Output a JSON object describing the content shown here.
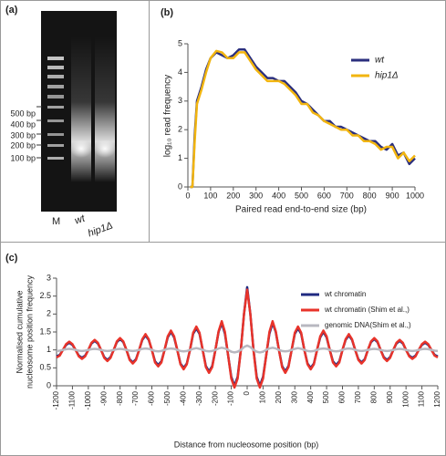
{
  "gel": {
    "panel_label": "(a)",
    "size_markers": [
      "500 bp",
      "400 bp",
      "300 bp",
      "200 bp",
      "100 bp"
    ],
    "lanes": [
      "M",
      "wt",
      "hip1Δ"
    ]
  },
  "chart_data": [
    {
      "type": "line",
      "panel_label": "(b)",
      "xlabel": "Paired read end-to-end size (bp)",
      "ylabel": "log₁₀ read frequency",
      "x": [
        10,
        20,
        30,
        40,
        60,
        80,
        100,
        125,
        150,
        175,
        200,
        225,
        250,
        275,
        300,
        325,
        350,
        375,
        400,
        425,
        450,
        475,
        500,
        525,
        550,
        575,
        600,
        625,
        650,
        675,
        700,
        725,
        750,
        775,
        800,
        825,
        850,
        875,
        900,
        925,
        950,
        975,
        1000
      ],
      "series": [
        {
          "name": "wt",
          "color": "#2b2f7e",
          "values": [
            0,
            0,
            1.8,
            3.0,
            3.5,
            4.1,
            4.5,
            4.7,
            4.6,
            4.5,
            4.6,
            4.8,
            4.8,
            4.5,
            4.2,
            4.0,
            3.8,
            3.8,
            3.7,
            3.7,
            3.5,
            3.3,
            3.0,
            2.9,
            2.7,
            2.5,
            2.3,
            2.3,
            2.1,
            2.1,
            2.0,
            1.9,
            1.8,
            1.7,
            1.6,
            1.6,
            1.4,
            1.3,
            1.5,
            1.1,
            1.2,
            0.8,
            1.0
          ]
        },
        {
          "name": "hip1Δ",
          "color": "#f2b50f",
          "values": [
            0,
            0,
            1.6,
            2.9,
            3.4,
            4.0,
            4.5,
            4.75,
            4.7,
            4.5,
            4.5,
            4.7,
            4.7,
            4.4,
            4.1,
            3.9,
            3.7,
            3.7,
            3.7,
            3.6,
            3.4,
            3.2,
            2.9,
            2.9,
            2.6,
            2.5,
            2.3,
            2.2,
            2.1,
            2.0,
            2.0,
            1.8,
            1.8,
            1.6,
            1.6,
            1.5,
            1.3,
            1.4,
            1.4,
            1.0,
            1.2,
            0.9,
            1.1
          ]
        }
      ],
      "xlim": [
        0,
        1000
      ],
      "xticks": [
        0,
        100,
        200,
        300,
        400,
        500,
        600,
        700,
        800,
        900,
        1000
      ],
      "ylim": [
        0,
        5
      ],
      "yticks": [
        0,
        1,
        2,
        3,
        4,
        5
      ],
      "grid": false,
      "legend": "top-right"
    },
    {
      "type": "line",
      "panel_label": "(c)",
      "xlabel": "Distance from nucleosome position (bp)",
      "ylabel": [
        "Normalised cumulative",
        "nucleosome  position frequency"
      ],
      "x": [
        -1200,
        -1180,
        -1160,
        -1140,
        -1120,
        -1100,
        -1080,
        -1060,
        -1040,
        -1020,
        -1000,
        -980,
        -960,
        -940,
        -920,
        -900,
        -880,
        -860,
        -840,
        -820,
        -800,
        -780,
        -760,
        -740,
        -720,
        -700,
        -680,
        -660,
        -640,
        -620,
        -600,
        -580,
        -560,
        -540,
        -520,
        -500,
        -480,
        -460,
        -440,
        -420,
        -400,
        -380,
        -360,
        -340,
        -320,
        -300,
        -280,
        -260,
        -240,
        -220,
        -200,
        -180,
        -160,
        -140,
        -120,
        -100,
        -80,
        -60,
        -40,
        -20,
        0,
        20,
        40,
        60,
        80,
        100,
        120,
        140,
        160,
        180,
        200,
        220,
        240,
        260,
        280,
        300,
        320,
        340,
        360,
        380,
        400,
        420,
        440,
        460,
        480,
        500,
        520,
        540,
        560,
        580,
        600,
        620,
        640,
        660,
        680,
        700,
        720,
        740,
        760,
        780,
        800,
        820,
        840,
        860,
        880,
        900,
        920,
        940,
        960,
        980,
        1000,
        1020,
        1040,
        1060,
        1080,
        1100,
        1120,
        1140,
        1160,
        1180,
        1200
      ],
      "series": [
        {
          "name": "wt  chromatin",
          "color": "#1f2a80",
          "values": [
            0.82,
            0.86,
            1.0,
            1.14,
            1.2,
            1.14,
            1.0,
            0.84,
            0.78,
            0.84,
            1.0,
            1.18,
            1.25,
            1.18,
            1.0,
            0.8,
            0.72,
            0.8,
            1.0,
            1.22,
            1.3,
            1.22,
            1.0,
            0.74,
            0.65,
            0.74,
            1.0,
            1.28,
            1.4,
            1.28,
            1.0,
            0.68,
            0.58,
            0.68,
            1.0,
            1.35,
            1.5,
            1.35,
            1.0,
            0.62,
            0.5,
            0.62,
            1.0,
            1.45,
            1.6,
            1.45,
            1.0,
            0.55,
            0.4,
            0.55,
            1.0,
            1.5,
            1.75,
            1.45,
            0.85,
            0.25,
            0.0,
            0.25,
            1.0,
            2.0,
            2.75,
            2.0,
            1.0,
            0.25,
            0.0,
            0.25,
            0.85,
            1.45,
            1.75,
            1.5,
            1.0,
            0.55,
            0.4,
            0.55,
            1.0,
            1.45,
            1.6,
            1.45,
            1.0,
            0.62,
            0.5,
            0.62,
            1.0,
            1.35,
            1.5,
            1.35,
            1.0,
            0.68,
            0.58,
            0.68,
            1.0,
            1.28,
            1.4,
            1.28,
            1.0,
            0.74,
            0.65,
            0.74,
            1.0,
            1.22,
            1.3,
            1.22,
            1.0,
            0.8,
            0.72,
            0.8,
            1.0,
            1.18,
            1.25,
            1.18,
            1.0,
            0.84,
            0.78,
            0.84,
            1.0,
            1.14,
            1.2,
            1.14,
            1.0,
            0.86,
            0.82
          ]
        },
        {
          "name": "wt  chromatin (Shim et al.,)",
          "color": "#e8332a",
          "values": [
            0.79,
            0.84,
            1.0,
            1.16,
            1.23,
            1.16,
            1.0,
            0.82,
            0.75,
            0.82,
            1.0,
            1.2,
            1.28,
            1.2,
            1.0,
            0.78,
            0.69,
            0.78,
            1.0,
            1.24,
            1.33,
            1.24,
            1.0,
            0.72,
            0.62,
            0.72,
            1.0,
            1.3,
            1.44,
            1.3,
            1.0,
            0.65,
            0.54,
            0.65,
            1.0,
            1.38,
            1.54,
            1.38,
            1.0,
            0.6,
            0.46,
            0.6,
            1.0,
            1.48,
            1.65,
            1.48,
            1.0,
            0.52,
            0.36,
            0.52,
            1.0,
            1.52,
            1.8,
            1.5,
            0.85,
            0.2,
            -0.05,
            0.2,
            0.98,
            2.0,
            2.68,
            2.0,
            0.98,
            0.2,
            -0.05,
            0.2,
            0.85,
            1.5,
            1.8,
            1.52,
            1.0,
            0.52,
            0.36,
            0.52,
            1.0,
            1.48,
            1.65,
            1.48,
            1.0,
            0.6,
            0.46,
            0.6,
            1.0,
            1.38,
            1.54,
            1.38,
            1.0,
            0.65,
            0.54,
            0.65,
            1.0,
            1.3,
            1.44,
            1.3,
            1.0,
            0.72,
            0.62,
            0.72,
            1.0,
            1.24,
            1.33,
            1.24,
            1.0,
            0.78,
            0.69,
            0.78,
            1.0,
            1.2,
            1.28,
            1.2,
            1.0,
            0.82,
            0.75,
            0.82,
            1.0,
            1.16,
            1.23,
            1.16,
            1.0,
            0.84,
            0.79
          ]
        },
        {
          "name": "genomic DNA(Shim et al.,)",
          "color": "#b8b8c0",
          "values": [
            0.97,
            0.98,
            1.0,
            1.02,
            1.03,
            1.02,
            1.0,
            0.98,
            0.97,
            0.98,
            1.0,
            1.02,
            1.03,
            1.02,
            1.0,
            0.98,
            0.97,
            0.98,
            1.0,
            1.02,
            1.03,
            1.02,
            1.0,
            0.98,
            0.97,
            0.98,
            1.0,
            1.03,
            1.04,
            1.03,
            1.0,
            0.97,
            0.96,
            0.97,
            1.0,
            1.03,
            1.04,
            1.03,
            1.0,
            0.97,
            0.96,
            0.97,
            1.0,
            1.03,
            1.05,
            1.03,
            1.0,
            0.97,
            0.96,
            0.97,
            1.0,
            1.04,
            1.06,
            1.04,
            1.0,
            0.95,
            0.93,
            0.95,
            1.0,
            1.08,
            1.12,
            1.08,
            1.0,
            0.95,
            0.93,
            0.95,
            1.0,
            1.04,
            1.06,
            1.04,
            1.0,
            0.97,
            0.96,
            0.97,
            1.0,
            1.03,
            1.05,
            1.03,
            1.0,
            0.97,
            0.96,
            0.97,
            1.0,
            1.03,
            1.04,
            1.03,
            1.0,
            0.97,
            0.96,
            0.97,
            1.0,
            1.03,
            1.04,
            1.03,
            1.0,
            0.98,
            0.97,
            0.98,
            1.0,
            1.02,
            1.03,
            1.02,
            1.0,
            0.98,
            0.97,
            0.98,
            1.0,
            1.02,
            1.03,
            1.02,
            1.0,
            0.98,
            0.97,
            0.98,
            1.0,
            1.02,
            1.03,
            1.02,
            1.0,
            0.98,
            0.97
          ]
        }
      ],
      "xlim": [
        -1200,
        1200
      ],
      "xticks": [
        -1200,
        -1100,
        -1000,
        -900,
        -800,
        -700,
        -600,
        -500,
        -400,
        -300,
        -200,
        -100,
        0,
        100,
        200,
        300,
        400,
        500,
        600,
        700,
        800,
        900,
        1000,
        1100,
        1200
      ],
      "ylim": [
        0,
        3
      ],
      "yticks": [
        0,
        0.5,
        1,
        1.5,
        2,
        2.5,
        3
      ],
      "grid": false,
      "legend": "top-right"
    }
  ]
}
